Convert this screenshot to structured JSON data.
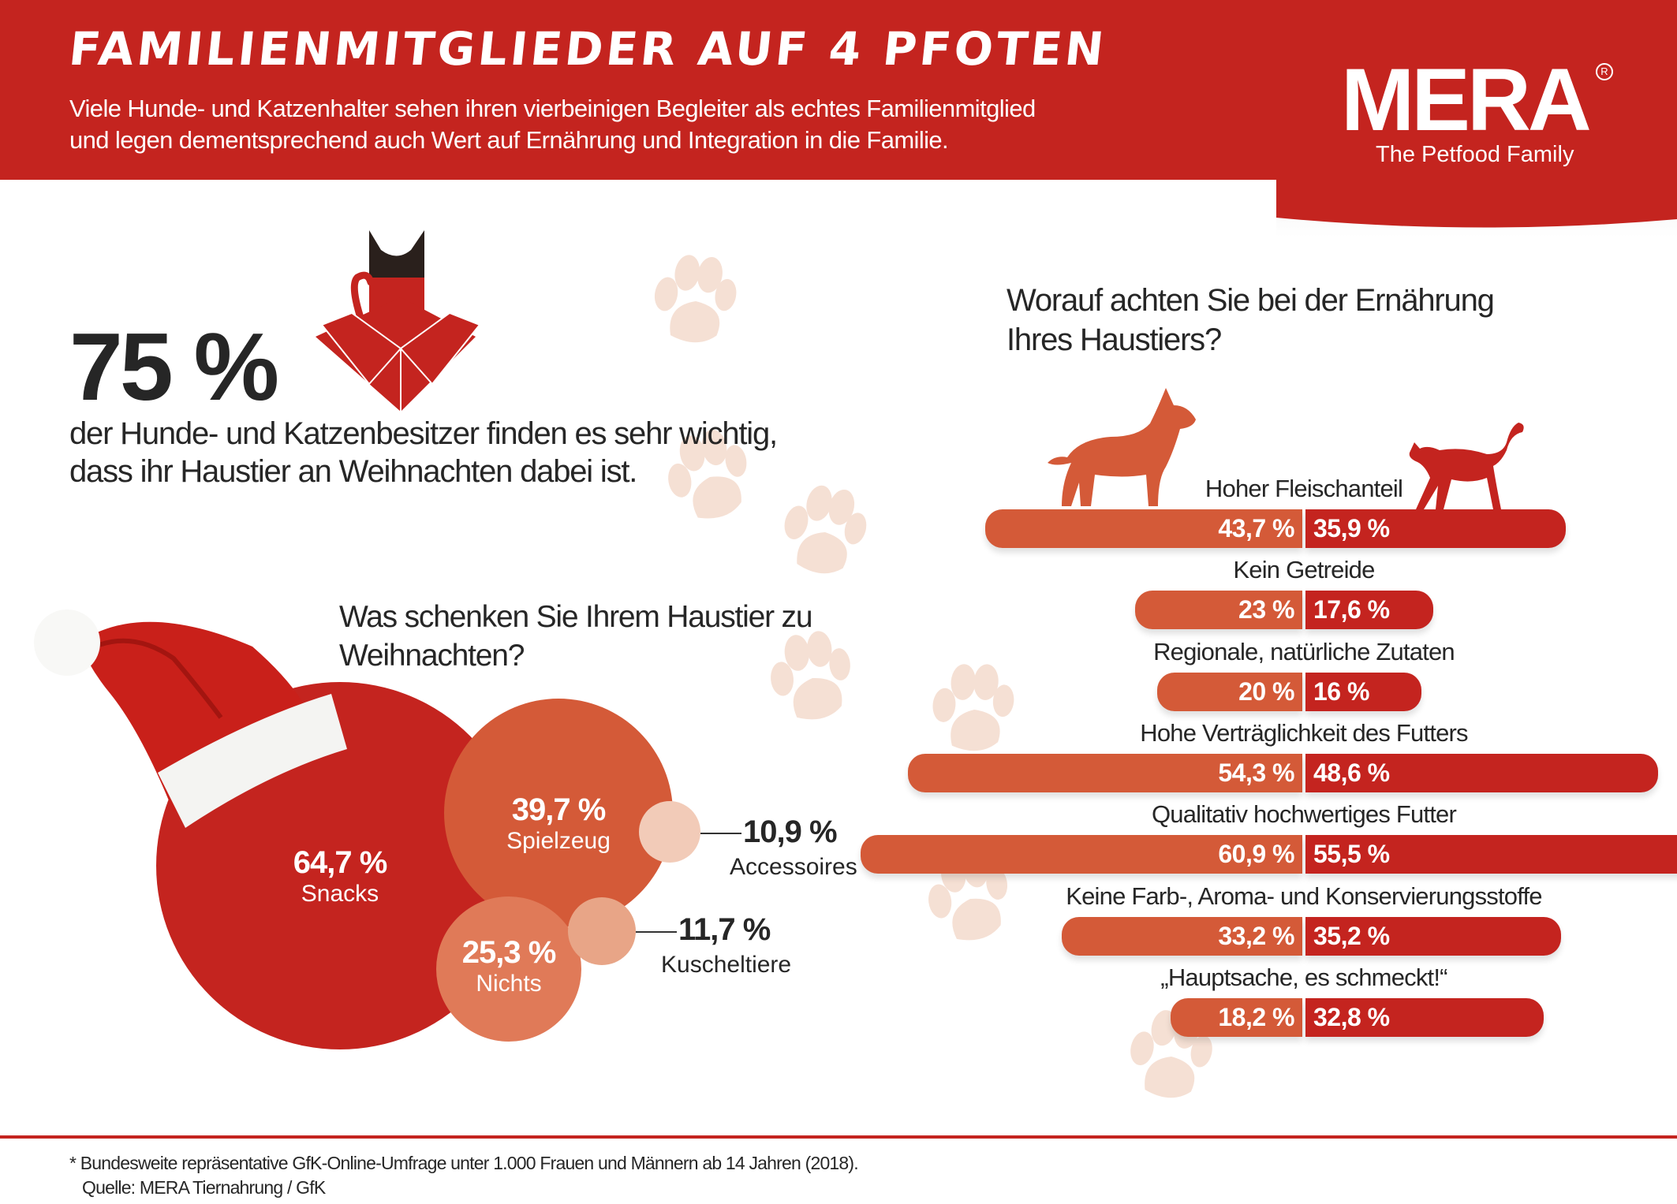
{
  "header": {
    "title": "FAMILIENMITGLIEDER AUF 4 PFOTEN",
    "subtitle": "Viele Hunde- und Katzenhalter sehen ihren vierbeinigen Begleiter als echtes Familienmitglied und legen dementsprechend auch Wert auf Ernährung und Integration in die Familie."
  },
  "logo": {
    "wordmark": "MERA",
    "registered": "R",
    "tagline": "The Petfood Family"
  },
  "colors": {
    "brand_red": "#c4241f",
    "dog_orange": "#d45a38",
    "bubble_mid": "#e07a58",
    "bubble_light": "#f2cbb8",
    "bubble_light2": "#e8a587",
    "paw": "#f5ddd0",
    "text": "#262626"
  },
  "highlight": {
    "value": "75 %",
    "text": "der Hunde- und Katzenbesitzer finden es sehr wichtig, dass ihr Haustier an Weihnachten dabei ist.",
    "icon": "cat-in-gift-box-icon"
  },
  "gifts": {
    "question": "Was schenken Sie Ihrem Haustier zu Weihnachten?",
    "items": [
      {
        "label": "Snacks",
        "value": "64,7 %"
      },
      {
        "label": "Spielzeug",
        "value": "39,7 %"
      },
      {
        "label": "Nichts",
        "value": "25,3 %"
      },
      {
        "label": "Accessoires",
        "value": "10,9 %"
      },
      {
        "label": "Kuscheltiere",
        "value": "11,7 %"
      }
    ]
  },
  "diet": {
    "question": "Worauf achten Sie bei der Ernährung Ihres Haustiers?",
    "legend": {
      "left": "dog-icon",
      "right": "cat-icon"
    },
    "rows": [
      {
        "label": "Hoher Fleischanteil",
        "dog": "43,7 %",
        "cat": "35,9 %"
      },
      {
        "label": "Kein Getreide",
        "dog": "23 %",
        "cat": "17,6 %"
      },
      {
        "label": "Regionale, natürliche Zutaten",
        "dog": "20 %",
        "cat": "16 %"
      },
      {
        "label": "Hohe Verträglichkeit des Futters",
        "dog": "54,3 %",
        "cat": "48,6 %"
      },
      {
        "label": "Qualitativ hochwertiges Futter",
        "dog": "60,9 %",
        "cat": "55,5 %"
      },
      {
        "label": "Keine Farb-, Aroma- und Konservierungsstoffe",
        "dog": "33,2 %",
        "cat": "35,2 %"
      },
      {
        "label": "„Hauptsache, es schmeckt!“",
        "dog": "18,2 %",
        "cat": "32,8 %"
      }
    ]
  },
  "chart_data": [
    {
      "type": "bubble",
      "title": "Was schenken Sie Ihrem Haustier zu Weihnachten?",
      "categories": [
        "Snacks",
        "Spielzeug",
        "Nichts",
        "Accessoires",
        "Kuscheltiere"
      ],
      "values": [
        64.7,
        39.7,
        25.3,
        10.9,
        11.7
      ],
      "unit": "%"
    },
    {
      "type": "bar",
      "orientation": "horizontal-diverging",
      "title": "Worauf achten Sie bei der Ernährung Ihres Haustiers?",
      "categories": [
        "Hoher Fleischanteil",
        "Kein Getreide",
        "Regionale, natürliche Zutaten",
        "Hohe Verträglichkeit des Futters",
        "Qualitativ hochwertiges Futter",
        "Keine Farb-, Aroma- und Konservierungsstoffe",
        "„Hauptsache, es schmeckt!“"
      ],
      "series": [
        {
          "name": "Hund",
          "values": [
            43.7,
            23,
            20,
            54.3,
            60.9,
            33.2,
            18.2
          ]
        },
        {
          "name": "Katze",
          "values": [
            35.9,
            17.6,
            16,
            48.6,
            55.5,
            35.2,
            32.8
          ]
        }
      ],
      "unit": "%"
    }
  ],
  "footer": {
    "note": "* Bundesweite repräsentative GfK-Online-Umfrage unter 1.000 Frauen und Männern ab 14 Jahren (2018).",
    "source": "Quelle: MERA Tiernahrung / GfK"
  }
}
